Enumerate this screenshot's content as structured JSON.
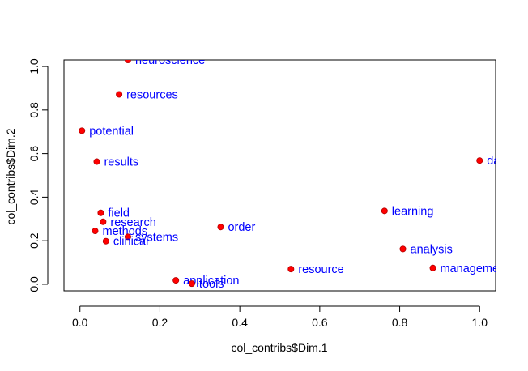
{
  "chart_data": {
    "type": "scatter",
    "title": "",
    "xlabel": "col_contribs$Dim.1",
    "ylabel": "col_contribs$Dim.2",
    "xlim": [
      -0.04,
      1.04
    ],
    "ylim": [
      -0.03,
      1.03
    ],
    "xticks": [
      "0.0",
      "0.2",
      "0.4",
      "0.6",
      "0.8",
      "1.0"
    ],
    "yticks": [
      "0.0",
      "0.2",
      "0.4",
      "0.6",
      "0.8",
      "1.0"
    ],
    "grid": false,
    "point_color": "#ff0000",
    "label_color": "#0000ff",
    "points": [
      {
        "label": "neuroscience",
        "x": 0.12,
        "y": 1.03
      },
      {
        "label": "resources",
        "x": 0.098,
        "y": 0.872
      },
      {
        "label": "potential",
        "x": 0.005,
        "y": 0.705
      },
      {
        "label": "results",
        "x": 0.042,
        "y": 0.563
      },
      {
        "label": "field",
        "x": 0.052,
        "y": 0.328
      },
      {
        "label": "research",
        "x": 0.058,
        "y": 0.287
      },
      {
        "label": "methods",
        "x": 0.038,
        "y": 0.245
      },
      {
        "label": "systems",
        "x": 0.12,
        "y": 0.218
      },
      {
        "label": "clinical",
        "x": 0.065,
        "y": 0.198
      },
      {
        "label": "order",
        "x": 0.352,
        "y": 0.263
      },
      {
        "label": "application",
        "x": 0.24,
        "y": 0.018
      },
      {
        "label": "tools",
        "x": 0.28,
        "y": 0.003
      },
      {
        "label": "resource",
        "x": 0.528,
        "y": 0.07
      },
      {
        "label": "learning",
        "x": 0.762,
        "y": 0.337
      },
      {
        "label": "analysis",
        "x": 0.808,
        "y": 0.162
      },
      {
        "label": "management",
        "x": 0.883,
        "y": 0.075
      },
      {
        "label": "data",
        "x": 1.0,
        "y": 0.568
      }
    ]
  }
}
